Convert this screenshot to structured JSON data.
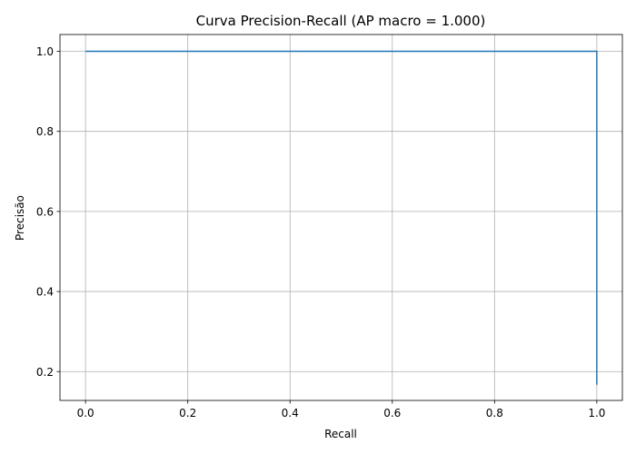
{
  "chart_data": {
    "type": "line",
    "title": "Curva Precision-Recall (AP macro = 1.000)",
    "xlabel": "Recall",
    "ylabel": "Precisão",
    "xlim": [
      -0.05,
      1.05
    ],
    "ylim": [
      0.128,
      1.042
    ],
    "xticks": [
      0.0,
      0.2,
      0.4,
      0.6,
      0.8,
      1.0
    ],
    "xtick_labels": [
      "0.0",
      "0.2",
      "0.4",
      "0.6",
      "0.8",
      "1.0"
    ],
    "yticks": [
      0.2,
      0.4,
      0.6,
      0.8,
      1.0
    ],
    "ytick_labels": [
      "0.2",
      "0.4",
      "0.6",
      "0.8",
      "1.0"
    ],
    "grid": true,
    "series": [
      {
        "color": "#1f77b4",
        "x": [
          0.0,
          1.0,
          1.0
        ],
        "y": [
          1.0,
          1.0,
          0.167
        ]
      }
    ]
  }
}
